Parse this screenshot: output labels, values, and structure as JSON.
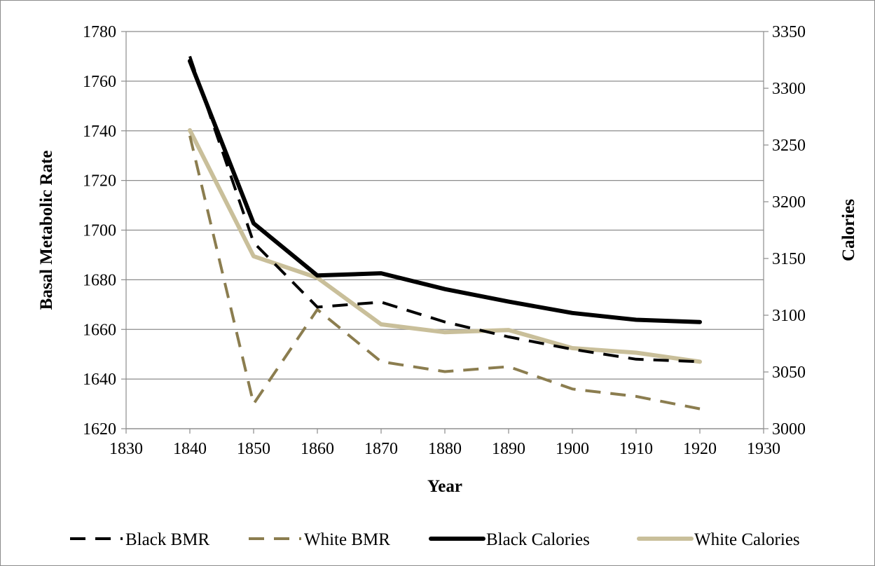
{
  "chart_data": {
    "type": "line",
    "title": "",
    "xlabel": "Year",
    "ylabel": "Basal Metabolic Rate",
    "y2label": "Calories",
    "x": [
      1840,
      1850,
      1860,
      1870,
      1880,
      1890,
      1900,
      1910,
      1920
    ],
    "xlim": [
      1830,
      1930
    ],
    "xticks": [
      1830,
      1840,
      1850,
      1860,
      1870,
      1880,
      1890,
      1900,
      1910,
      1920,
      1930
    ],
    "ylim": [
      1620,
      1780
    ],
    "yticks": [
      1620,
      1640,
      1660,
      1680,
      1700,
      1720,
      1740,
      1760,
      1780
    ],
    "y2lim": [
      3000,
      3350
    ],
    "y2ticks": [
      3000,
      3050,
      3100,
      3150,
      3200,
      3250,
      3300,
      3350
    ],
    "grid": "horizontal",
    "legend_position": "bottom",
    "series": [
      {
        "name": "Black BMR",
        "axis": "left",
        "style": "dashed",
        "color": "#000000",
        "values": [
          1770,
          1695,
          1669,
          1671,
          1663,
          1657,
          1652,
          1648,
          1647
        ]
      },
      {
        "name": "White BMR",
        "axis": "left",
        "style": "dashed",
        "color": "#8b7d4f",
        "values": [
          1738,
          1630,
          1668,
          1647,
          1643,
          1645,
          1636,
          1633,
          1628
        ]
      },
      {
        "name": "Black Calories",
        "axis": "right",
        "style": "solid",
        "color": "#000000",
        "values": [
          3324,
          3181,
          3135,
          3137,
          3123,
          3112,
          3102,
          3096,
          3094
        ]
      },
      {
        "name": "White Calories",
        "axis": "right",
        "style": "solid",
        "color": "#c9bf9a",
        "values": [
          3263,
          3152,
          3133,
          3092,
          3085,
          3087,
          3071,
          3067,
          3059
        ]
      }
    ]
  }
}
